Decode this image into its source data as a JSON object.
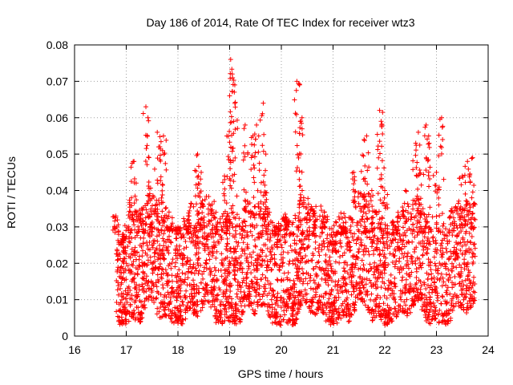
{
  "chart_data": {
    "type": "scatter",
    "title": "Day 186 of 2014, Rate Of TEC Index for receiver wtz3",
    "xlabel": "GPS time / hours",
    "ylabel": "ROTI / TECUs",
    "xlim": [
      16,
      24
    ],
    "ylim": [
      0,
      0.08
    ],
    "x_ticks": [
      "16",
      "17",
      "18",
      "19",
      "20",
      "21",
      "22",
      "23",
      "24"
    ],
    "y_ticks": [
      "0",
      "0.01",
      "0.02",
      "0.03",
      "0.04",
      "0.05",
      "0.06",
      "0.07",
      "0.08"
    ],
    "grid": true,
    "marker": "plus",
    "series": [
      {
        "name": "ROTI",
        "color": "#ff0000",
        "x_range": [
          16.8,
          23.75
        ],
        "typical_range": [
          0.005,
          0.035
        ],
        "x": [
          16.8,
          16.9,
          17.0,
          17.1,
          17.15,
          17.3,
          17.38,
          17.42,
          17.6,
          17.65,
          17.72,
          18.0,
          18.2,
          18.38,
          18.45,
          18.55,
          18.7,
          18.9,
          19.0,
          19.02,
          19.05,
          19.1,
          19.3,
          19.45,
          19.52,
          19.65,
          19.7,
          19.9,
          20.1,
          20.3,
          20.35,
          20.4,
          20.6,
          20.8,
          21.0,
          21.2,
          21.4,
          21.6,
          21.65,
          21.75,
          21.9,
          21.93,
          22.0,
          22.2,
          22.4,
          22.6,
          22.65,
          22.8,
          22.85,
          23.0,
          23.1,
          23.3,
          23.5,
          23.6,
          23.7
        ],
        "y": [
          0.033,
          0.025,
          0.02,
          0.038,
          0.048,
          0.035,
          0.063,
          0.06,
          0.056,
          0.052,
          0.055,
          0.03,
          0.033,
          0.05,
          0.045,
          0.02,
          0.037,
          0.044,
          0.066,
          0.076,
          0.072,
          0.069,
          0.058,
          0.055,
          0.058,
          0.064,
          0.05,
          0.03,
          0.032,
          0.07,
          0.069,
          0.06,
          0.035,
          0.033,
          0.025,
          0.03,
          0.045,
          0.054,
          0.055,
          0.04,
          0.062,
          0.059,
          0.04,
          0.03,
          0.04,
          0.053,
          0.056,
          0.058,
          0.055,
          0.045,
          0.06,
          0.035,
          0.044,
          0.048,
          0.049
        ]
      }
    ]
  }
}
